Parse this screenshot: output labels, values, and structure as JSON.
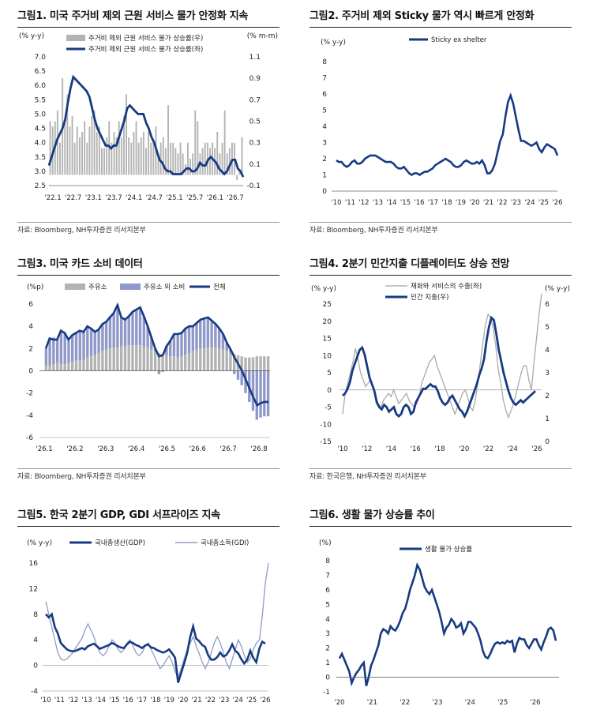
{
  "colors": {
    "navy": "#173a82",
    "gray": "#b3b3b3",
    "lightblue": "#8f98c9",
    "gdi": "#8f9bc9"
  },
  "panels": [
    {
      "title": "그림1. 미국 주거비 제외 근원 서비스 물가 안정화 지속",
      "source": "자료: Bloomberg, NH투자증권 리서치본부"
    },
    {
      "title": "그림2. 주거비 제외 Sticky 물가 역시 빠르게 안정화",
      "source": "자료: Bloomberg, NH투자증권 리서치본부"
    },
    {
      "title": "그림3. 미국 카드 소비 데이터",
      "source": "자료: Bloomberg, NH투자증권 리서치본부"
    },
    {
      "title": "그림4. 2분기 민간지출 디플레이터도 상승 전망",
      "source": "자료: 한국은행, NH투자증권 리서치본부"
    },
    {
      "title": "그림5. 한국 2분기 GDP, GDI 서프라이즈 지속",
      "source": ""
    },
    {
      "title": "그림6. 생활 물가 상승률 추이",
      "source": ""
    }
  ],
  "chart_data": [
    {
      "type": "bar",
      "ylabel": "(% y-y)",
      "y2label": "(% m-m)",
      "ylim": [
        2.5,
        7.0
      ],
      "yticks": [
        "7.0",
        "6.5",
        "6.0",
        "5.5",
        "5.0",
        "4.5",
        "4.0",
        "3.5",
        "3.0",
        "2.5"
      ],
      "y2lim": [
        -0.1,
        1.1
      ],
      "y2ticks": [
        "1.1",
        "0.9",
        "0.7",
        "0.5",
        "0.3",
        "0.1",
        "-0.1"
      ],
      "xticks": [
        "'22.1",
        "'22.7",
        "'23.1",
        "'23.7",
        "'24.1",
        "'24.7",
        "'25.1",
        "'25.7",
        "'26.1",
        "'26.7"
      ],
      "series": [
        {
          "name": "주거비 제외 근원 서비스 물가 상승률(우)",
          "type": "bar",
          "axis": "right",
          "values": [
            0.5,
            0.45,
            0.5,
            0.6,
            0.3,
            0.9,
            0.5,
            0.75,
            0.45,
            0.55,
            0.3,
            0.45,
            0.35,
            0.4,
            0.5,
            0.3,
            0.45,
            0.55,
            0.6,
            0.4,
            0.45,
            0.25,
            0.25,
            0.35,
            0.5,
            0.3,
            0.4,
            0.35,
            0.5,
            0.35,
            0.55,
            0.75,
            0.35,
            0.3,
            0.4,
            0.5,
            0.3,
            0.35,
            0.4,
            0.25,
            0.4,
            0.3,
            0.3,
            0.45,
            0.2,
            0.3,
            0.35,
            0.25,
            0.65,
            0.3,
            0.3,
            0.25,
            0.2,
            0.3,
            0.2,
            0.1,
            0.3,
            0.15,
            0.2,
            0.6,
            0.5,
            0.2,
            0.25,
            0.3,
            0.3,
            0.25,
            0.3,
            0.25,
            0.4,
            0.2,
            0.3,
            0.6,
            0.2,
            0.25,
            0.3,
            0.3,
            -0.05,
            0.05,
            0.35
          ]
        },
        {
          "name": "주거비 제외 근원 서비스 물가 상승률(좌)",
          "type": "line",
          "axis": "left",
          "values": [
            3.2,
            3.5,
            3.8,
            4.1,
            4.3,
            4.5,
            4.8,
            5.4,
            5.9,
            6.3,
            6.2,
            6.1,
            6.0,
            5.9,
            5.8,
            5.6,
            5.2,
            4.8,
            4.5,
            4.3,
            4.1,
            3.9,
            3.9,
            3.8,
            3.9,
            3.9,
            4.2,
            4.5,
            4.8,
            5.2,
            5.3,
            5.2,
            5.1,
            5.0,
            5.0,
            5.0,
            4.7,
            4.5,
            4.2,
            4.0,
            3.7,
            3.4,
            3.3,
            3.1,
            3.0,
            3.0,
            2.9,
            2.9,
            2.9,
            2.9,
            3.0,
            3.1,
            3.1,
            3.0,
            3.0,
            3.1,
            3.3,
            3.2,
            3.2,
            3.4,
            3.5,
            3.4,
            3.3,
            3.1,
            3.0,
            2.9,
            3.0,
            3.2,
            3.4,
            3.4,
            3.1,
            3.0,
            2.8
          ]
        }
      ]
    },
    {
      "type": "line",
      "ylabel": "(% y-y)",
      "ylim": [
        0,
        8
      ],
      "yticks": [
        "8",
        "7",
        "6",
        "5",
        "4",
        "3",
        "2",
        "1",
        "0"
      ],
      "xticks": [
        "'10",
        "'11",
        "'12",
        "'13",
        "'14",
        "'15",
        "'16",
        "'17",
        "'18",
        "'19",
        "'20",
        "'21",
        "'22",
        "'23",
        "'24",
        "'25",
        "'26"
      ],
      "series": [
        {
          "name": "Sticky ex shelter",
          "values": [
            1.9,
            1.8,
            1.8,
            1.6,
            1.5,
            1.6,
            1.8,
            1.9,
            1.7,
            1.7,
            1.8,
            2.0,
            2.1,
            2.2,
            2.2,
            2.2,
            2.1,
            2.0,
            1.9,
            1.8,
            1.8,
            1.8,
            1.7,
            1.5,
            1.4,
            1.4,
            1.5,
            1.3,
            1.1,
            1.0,
            1.1,
            1.1,
            1.0,
            1.1,
            1.2,
            1.2,
            1.3,
            1.4,
            1.6,
            1.7,
            1.8,
            1.9,
            2.0,
            1.9,
            1.8,
            1.6,
            1.5,
            1.5,
            1.6,
            1.8,
            1.9,
            1.8,
            1.7,
            1.7,
            1.8,
            1.7,
            1.9,
            1.6,
            1.1,
            1.1,
            1.3,
            1.7,
            2.4,
            3.1,
            3.5,
            4.6,
            5.5,
            5.9,
            5.4,
            4.6,
            3.8,
            3.1,
            3.1,
            3.0,
            2.9,
            2.8,
            2.9,
            3.0,
            2.6,
            2.4,
            2.7,
            2.9,
            2.8,
            2.7,
            2.6,
            2.2
          ]
        }
      ]
    },
    {
      "type": "bar",
      "ylabel": "(%p)",
      "ylim": [
        -6,
        6
      ],
      "yticks": [
        "6",
        "4",
        "2",
        "0",
        "-2",
        "-4",
        "-6"
      ],
      "xticks": [
        "'26.1",
        "'26.2",
        "'26.3",
        "'26.4",
        "'26.5",
        "'26.6",
        "'26.7",
        "'26.8"
      ],
      "series": [
        {
          "name": "주유소",
          "type": "bar",
          "values": [
            0.5,
            0.5,
            0.6,
            0.7,
            0.6,
            0.6,
            0.7,
            0.8,
            0.9,
            0.9,
            1.0,
            1.2,
            1.3,
            1.4,
            1.6,
            1.8,
            1.9,
            2.0,
            2.1,
            2.1,
            2.2,
            2.2,
            2.3,
            2.3,
            2.3,
            2.3,
            2.2,
            2.1,
            1.9,
            1.7,
            1.6,
            1.5,
            1.4,
            1.3,
            1.3,
            1.2,
            1.3,
            1.4,
            1.6,
            1.8,
            1.9,
            2.0,
            2.0,
            2.1,
            2.1,
            2.1,
            2.0,
            1.9,
            1.8,
            1.6,
            1.5,
            1.4,
            1.3,
            1.2,
            1.2,
            1.2,
            1.3,
            1.3,
            1.3,
            1.3
          ]
        },
        {
          "name": "주유소 외 소비",
          "type": "bar",
          "values": [
            1.5,
            2.5,
            2.4,
            2.1,
            3.0,
            2.8,
            2.0,
            2.4,
            2.5,
            2.7,
            2.5,
            2.8,
            2.5,
            2.1,
            2.1,
            2.4,
            2.5,
            2.9,
            3.1,
            3.8,
            2.6,
            2.4,
            2.6,
            3.0,
            3.2,
            3.4,
            2.7,
            1.9,
            1.1,
            0.3,
            -0.3,
            -0.1,
            0.8,
            1.4,
            2.0,
            2.1,
            2.1,
            2.4,
            2.4,
            2.2,
            2.4,
            2.6,
            2.7,
            2.7,
            2.4,
            2.1,
            1.8,
            1.4,
            0.7,
            0.3,
            -0.3,
            -0.8,
            -1.3,
            -2.0,
            -2.8,
            -3.6,
            -4.4,
            -4.2,
            -4.1,
            -4.1
          ]
        },
        {
          "name": "전체",
          "type": "line",
          "values": [
            2.0,
            2.9,
            2.8,
            2.8,
            3.6,
            3.4,
            2.8,
            3.2,
            3.4,
            3.6,
            3.5,
            4.0,
            3.8,
            3.5,
            3.7,
            4.2,
            4.4,
            4.8,
            5.2,
            5.9,
            4.8,
            4.6,
            4.9,
            5.3,
            5.5,
            5.7,
            4.9,
            4.0,
            3.0,
            2.0,
            1.3,
            1.4,
            2.2,
            2.7,
            3.3,
            3.3,
            3.4,
            3.8,
            4.0,
            4.0,
            4.3,
            4.6,
            4.7,
            4.8,
            4.5,
            4.2,
            3.8,
            3.3,
            2.5,
            1.9,
            1.2,
            0.6,
            0.0,
            -0.8,
            -1.6,
            -2.4,
            -3.1,
            -2.9,
            -2.8,
            -2.8
          ]
        }
      ]
    },
    {
      "type": "line",
      "ylabel": "(% y-y)",
      "y2label": "(% y-y)",
      "ylim": [
        -15,
        25
      ],
      "yticks": [
        "25",
        "20",
        "15",
        "10",
        "5",
        "0",
        "-5",
        "-10",
        "-15"
      ],
      "y2lim": [
        0,
        6
      ],
      "y2ticks": [
        "6",
        "5",
        "4",
        "3",
        "2",
        "1",
        "0"
      ],
      "xticks": [
        "'10",
        "'12",
        "'14",
        "'16",
        "'18",
        "'20",
        "'22",
        "'24",
        "'26"
      ],
      "series": [
        {
          "name": "재화와 서비스의 수출(좌)",
          "axis": "left",
          "values": [
            -7,
            -1,
            2,
            5,
            8,
            12,
            9,
            5,
            3,
            1,
            2,
            3,
            0,
            -2,
            -4,
            -5,
            -3,
            -2,
            -1,
            -2,
            0,
            -2,
            -4,
            -3,
            -2,
            -1,
            -3,
            -4,
            -5,
            -4,
            -2,
            2,
            4,
            6,
            8,
            9,
            10,
            7,
            5,
            3,
            1,
            -1,
            -3,
            -5,
            -7,
            -5,
            -3,
            -1,
            0,
            -2,
            -5,
            -6,
            -3,
            2,
            8,
            14,
            19,
            22,
            21,
            18,
            13,
            6,
            2,
            -3,
            -6,
            -8,
            -6,
            -4,
            -1,
            2,
            5,
            7,
            7,
            3,
            0,
            8,
            15,
            22,
            28
          ]
        },
        {
          "name": "민간 지출(우)",
          "axis": "right",
          "values": [
            2.0,
            2.1,
            2.3,
            2.6,
            3.1,
            3.4,
            3.7,
            4.0,
            4.1,
            3.8,
            3.3,
            2.8,
            2.5,
            2.2,
            1.7,
            1.5,
            1.4,
            1.6,
            1.5,
            1.3,
            1.4,
            1.5,
            1.2,
            1.1,
            1.2,
            1.5,
            1.6,
            1.5,
            1.2,
            1.3,
            1.7,
            1.9,
            2.1,
            2.3,
            2.3,
            2.4,
            2.5,
            2.4,
            2.4,
            2.2,
            1.9,
            1.7,
            1.6,
            1.7,
            1.9,
            2.0,
            1.8,
            1.6,
            1.4,
            1.3,
            1.1,
            1.3,
            1.6,
            1.9,
            2.2,
            2.5,
            2.9,
            3.2,
            3.6,
            4.4,
            5.0,
            5.4,
            5.3,
            4.7,
            4.0,
            3.5,
            3.0,
            2.6,
            2.2,
            1.9,
            1.7,
            1.6,
            1.7,
            1.8,
            1.7,
            1.8,
            1.9,
            2.0,
            2.1,
            2.2
          ]
        }
      ]
    },
    {
      "type": "line",
      "ylabel": "(% y-y)",
      "ylim": [
        -4,
        16
      ],
      "yticks": [
        "16",
        "12",
        "8",
        "4",
        "0",
        "-4"
      ],
      "xticks": [
        "'10",
        "'11",
        "'12",
        "'13",
        "'14",
        "'15",
        "'16",
        "'17",
        "'18",
        "'19",
        "'20",
        "'21",
        "'22",
        "'23",
        "'24",
        "'25",
        "'26"
      ],
      "series": [
        {
          "name": "국내총생산(GDP)",
          "values": [
            8.0,
            7.5,
            8.0,
            6.0,
            5.0,
            3.5,
            3.0,
            2.5,
            2.3,
            2.2,
            2.3,
            2.5,
            2.7,
            2.5,
            3.0,
            3.2,
            3.4,
            3.0,
            2.6,
            2.8,
            3.0,
            3.2,
            3.5,
            3.3,
            3.0,
            2.8,
            2.7,
            3.3,
            3.7,
            3.5,
            3.2,
            3.0,
            2.7,
            3.1,
            3.3,
            2.8,
            2.7,
            2.4,
            2.2,
            2.0,
            2.2,
            2.5,
            1.9,
            1.2,
            -2.7,
            -1.2,
            0.3,
            1.9,
            4.4,
            6.1,
            4.2,
            3.8,
            3.2,
            2.9,
            1.6,
            0.9,
            0.9,
            1.3,
            2.0,
            1.4,
            1.6,
            2.3,
            3.3,
            2.3,
            1.9,
            1.0,
            0.3,
            0.9,
            2.3,
            1.2,
            0.5,
            2.6,
            3.7,
            3.4
          ]
        },
        {
          "name": "국내총소득(GDI)",
          "values": [
            10.0,
            8.0,
            6.0,
            4.0,
            2.0,
            1.0,
            0.8,
            1.0,
            1.5,
            2.0,
            2.8,
            3.5,
            4.2,
            5.5,
            6.5,
            5.5,
            4.5,
            3.0,
            2.0,
            1.5,
            2.0,
            3.0,
            4.0,
            3.5,
            2.5,
            2.0,
            2.5,
            3.5,
            4.0,
            3.0,
            2.0,
            1.5,
            2.0,
            3.0,
            3.5,
            2.5,
            1.5,
            0.5,
            -0.5,
            0.0,
            0.8,
            1.5,
            0.5,
            -1.0,
            -1.8,
            -0.5,
            1.0,
            2.5,
            3.5,
            4.5,
            3.0,
            1.8,
            0.5,
            -0.5,
            0.5,
            2.0,
            3.5,
            4.5,
            3.5,
            2.0,
            0.5,
            -0.5,
            1.0,
            2.5,
            4.0,
            3.0,
            1.5,
            0.5,
            1.0,
            2.5,
            3.5,
            4.0,
            8.0,
            13.0,
            16.0
          ]
        }
      ]
    },
    {
      "type": "line",
      "ylabel": "(%)",
      "ylim": [
        -1,
        8
      ],
      "yticks": [
        "8",
        "7",
        "6",
        "5",
        "4",
        "3",
        "2",
        "1",
        "0",
        "-1"
      ],
      "xticks": [
        "'20",
        "'21",
        "'22",
        "'23",
        "'24",
        "'25",
        "'26"
      ],
      "series": [
        {
          "name": "생활 물가 상승률",
          "values": [
            1.3,
            1.6,
            1.2,
            0.8,
            0.4,
            -0.4,
            0.0,
            0.3,
            0.5,
            0.8,
            1.0,
            -0.6,
            0.0,
            0.8,
            1.2,
            1.7,
            2.2,
            3.0,
            3.3,
            3.2,
            3.0,
            3.5,
            3.3,
            3.2,
            3.5,
            3.9,
            4.4,
            4.7,
            5.3,
            6.0,
            6.5,
            7.0,
            7.7,
            7.4,
            6.8,
            6.2,
            5.9,
            5.7,
            6.0,
            5.5,
            5.0,
            4.5,
            3.8,
            3.0,
            3.4,
            3.6,
            4.0,
            3.8,
            3.4,
            3.5,
            3.7,
            3.0,
            3.3,
            3.8,
            3.8,
            3.6,
            3.4,
            3.0,
            2.5,
            1.8,
            1.4,
            1.3,
            1.6,
            2.0,
            2.3,
            2.4,
            2.3,
            2.4,
            2.3,
            2.5,
            2.4,
            2.5,
            1.7,
            2.3,
            2.7,
            2.6,
            2.6,
            2.2,
            2.0,
            2.3,
            2.6,
            2.6,
            2.2,
            1.9,
            2.4,
            2.8,
            3.3,
            3.4,
            3.2,
            2.5
          ]
        }
      ]
    }
  ]
}
